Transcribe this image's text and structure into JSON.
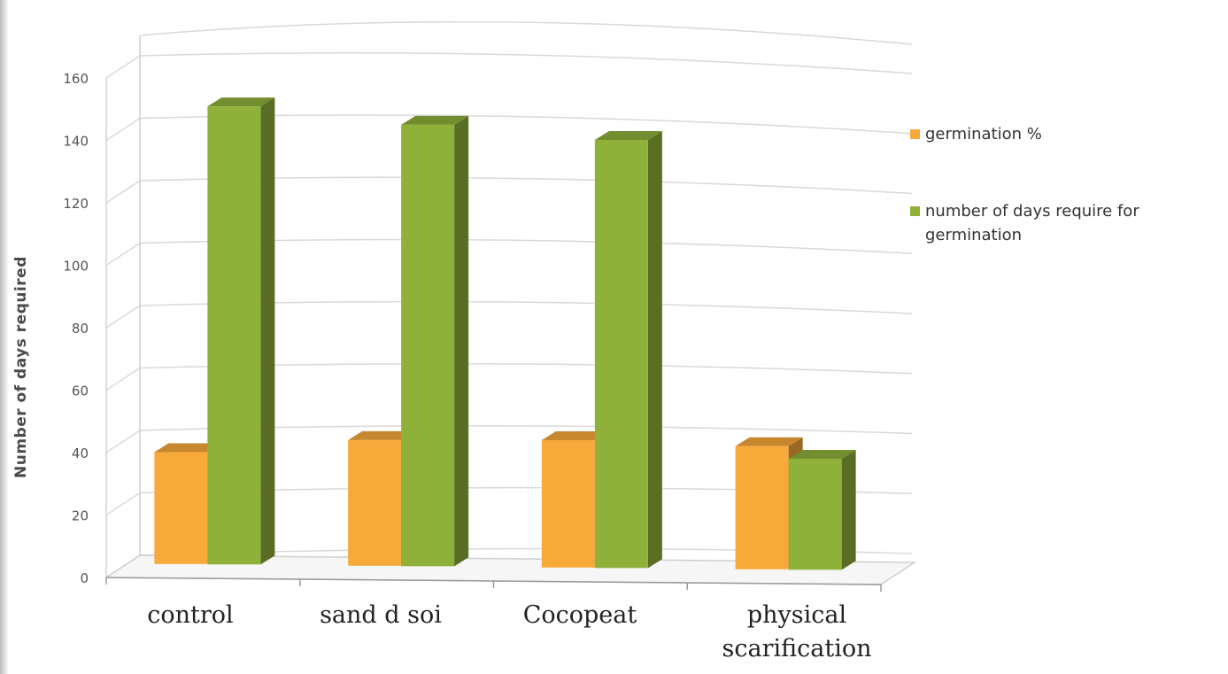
{
  "chart_data": {
    "type": "bar",
    "title": "",
    "xlabel": "",
    "ylabel": "Number of days required",
    "ylim": [
      0,
      160
    ],
    "yticks": [
      "0",
      "20",
      "40",
      "60",
      "80",
      "100",
      "120",
      "140",
      "160"
    ],
    "categories": [
      "control",
      "sand  d soi",
      "Cocopeat",
      "physical scarification"
    ],
    "series": [
      {
        "name": "germination %",
        "values": [
          37,
          42,
          43,
          42
        ],
        "color": "#f7a93a"
      },
      {
        "name": "number of days require for germination",
        "values": [
          152,
          148,
          145,
          38
        ],
        "color": "#8fb13a"
      }
    ],
    "grid": true,
    "legend": "right",
    "style": "3d-column"
  }
}
